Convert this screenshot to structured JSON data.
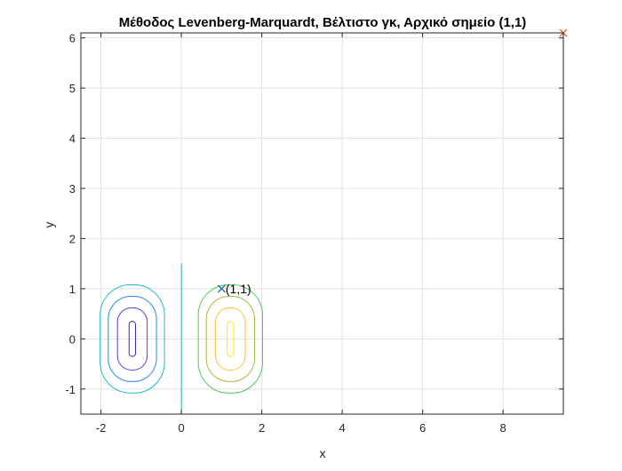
{
  "chart_data": {
    "type": "line",
    "title": "Μέθοδος Levenberg-Marquardt, Βέλτιστο γκ, Αρχικό σημείο (1,1)",
    "xlabel": "x",
    "ylabel": "y",
    "xlim": [
      -2.5,
      9.5
    ],
    "ylim": [
      -1.5,
      6.1
    ],
    "xticks": [
      -2,
      0,
      2,
      4,
      6,
      8
    ],
    "yticks": [
      -1,
      0,
      1,
      2,
      3,
      4,
      5,
      6
    ],
    "grid": true,
    "contours": {
      "levels": [
        {
          "cx": -1.22,
          "cy": 0.0,
          "rx": 0.08,
          "ry": 0.35,
          "color": "#3e26a8"
        },
        {
          "cx": -1.22,
          "cy": 0.0,
          "rx": 0.37,
          "ry": 0.62,
          "color": "#4443e8"
        },
        {
          "cx": -1.22,
          "cy": 0.0,
          "rx": 0.6,
          "ry": 0.85,
          "color": "#2e87f7"
        },
        {
          "cx": -1.22,
          "cy": 0.0,
          "rx": 0.8,
          "ry": 1.08,
          "color": "#1fb8cc"
        },
        {
          "cx": 1.22,
          "cy": 0.0,
          "rx": 0.08,
          "ry": 0.35,
          "color": "#f5e61e"
        },
        {
          "cx": 1.22,
          "cy": 0.0,
          "rx": 0.37,
          "ry": 0.62,
          "color": "#fcbf3c"
        },
        {
          "cx": 1.22,
          "cy": 0.0,
          "rx": 0.6,
          "ry": 0.85,
          "color": "#a3bd3a"
        },
        {
          "cx": 1.22,
          "cy": 0.0,
          "rx": 0.8,
          "ry": 1.08,
          "color": "#4dc95a"
        }
      ],
      "zero_line": {
        "x": 0,
        "y": [
          -1.5,
          1.5
        ],
        "color": "#21b5a6"
      }
    },
    "series": [
      {
        "x": [
          1,
          9.5
        ],
        "y": [
          1,
          6.1
        ],
        "color": "#d95319",
        "marker": "x",
        "show_line": false
      }
    ],
    "start_point": {
      "x": 1,
      "y": 1,
      "color": "#0072bd",
      "marker": "x"
    },
    "annotations": [
      {
        "text": "(1,1)",
        "x": 1.1,
        "y": 1.0
      }
    ]
  }
}
